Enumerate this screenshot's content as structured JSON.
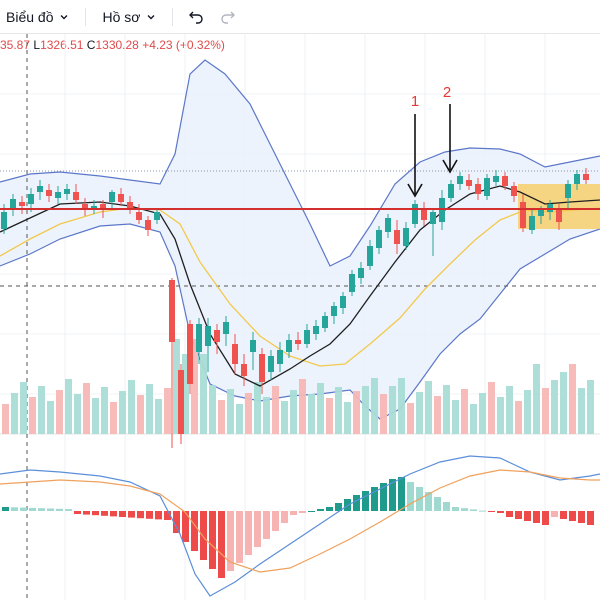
{
  "toolbar": {
    "chart_menu_label": "Biểu đồ",
    "profile_menu_label": "Hồ sơ",
    "undo_icon": "undo-icon",
    "redo_icon": "redo-icon",
    "chevron_icon": "chevron-down-icon"
  },
  "ohlc": {
    "high_value": "35.87",
    "low_label": "L",
    "low_value": "1326.51",
    "close_label": "C",
    "close_value": "1330.28",
    "change": "+4.23 (+0.32%)"
  },
  "annotations": [
    {
      "label": "1"
    },
    {
      "label": "2"
    }
  ],
  "colors": {
    "up": "#26a69a",
    "down": "#ef5350",
    "band": "#5b77c9",
    "band_fill": "#e8f0fb",
    "ma_fast": "#1f1f1f",
    "ma_slow": "#f2c94c",
    "resistance": "#d32f2f",
    "zone": "#f9c74f",
    "macd": "#5b8fd9",
    "signal": "#f0a15c",
    "arrow": "#111111",
    "label": "#e53935"
  }
}
